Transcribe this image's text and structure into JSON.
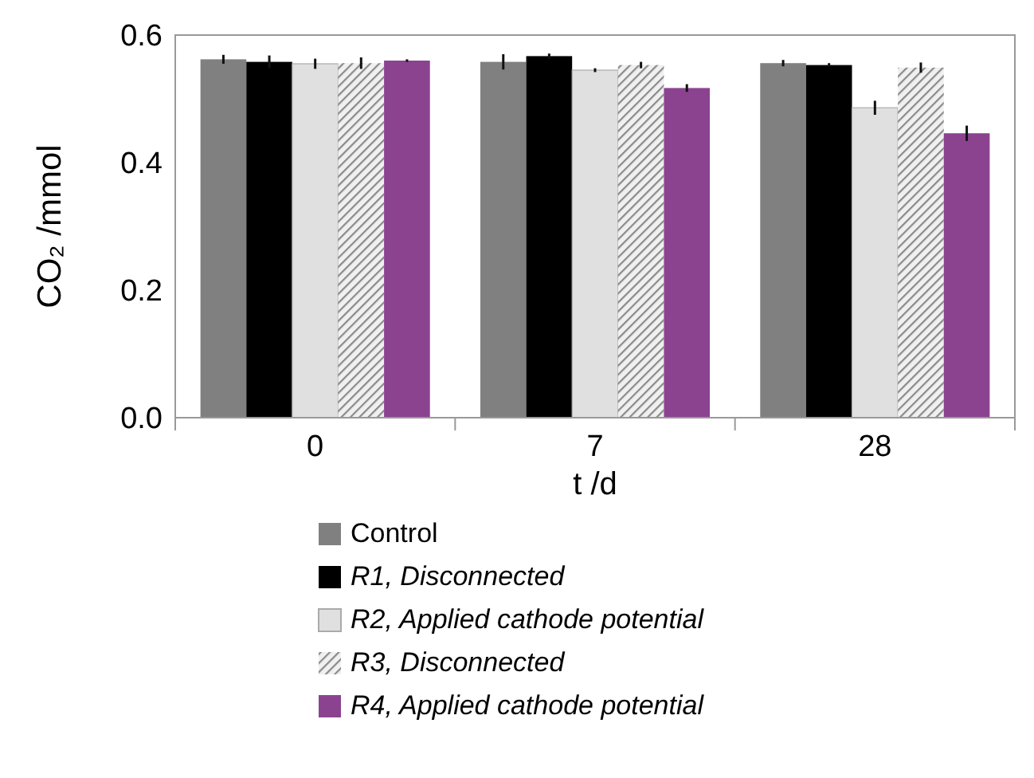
{
  "chart_data": {
    "type": "bar",
    "xlabel": "t /d",
    "ylabel": "CO₂ /mmol",
    "categories": [
      "0",
      "7",
      "28"
    ],
    "ylim": [
      0,
      0.6
    ],
    "yticks": [
      {
        "value": 0,
        "label": "0.0"
      },
      {
        "value": 0.2,
        "label": "0.2"
      },
      {
        "value": 0.4,
        "label": "0.4"
      },
      {
        "value": 0.6,
        "label": "0.6"
      }
    ],
    "legend": "bottom",
    "series": [
      {
        "name": "Control",
        "color": "#808080",
        "values": [
          0.562,
          0.558,
          0.556
        ],
        "errors": [
          0.007,
          0.012,
          0.005
        ]
      },
      {
        "name": "R1, Disconnected",
        "color": "#000000",
        "values": [
          0.558,
          0.567,
          0.553
        ],
        "errors": [
          0.01,
          0.004,
          0.003
        ]
      },
      {
        "name": "R2, Applied cathode potential",
        "color": "#e0e0e0",
        "values": [
          0.555,
          0.545,
          0.486
        ],
        "errors": [
          0.008,
          0.003,
          0.011
        ]
      },
      {
        "name": "R3, Disconnected",
        "color": "#8a8a8a",
        "values": [
          0.556,
          0.553,
          0.549
        ],
        "errors": [
          0.009,
          0.005,
          0.008
        ]
      },
      {
        "name": "R4, Applied cathode potential",
        "color": "#8b4390",
        "values": [
          0.56,
          0.517,
          0.446
        ],
        "errors": [
          0.002,
          0.006,
          0.012
        ]
      }
    ]
  }
}
